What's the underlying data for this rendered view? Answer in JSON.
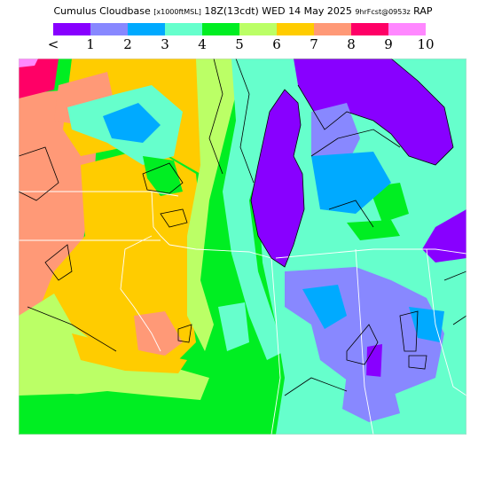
{
  "header": {
    "product": "Cumulus Cloudbase",
    "units": "[x1000ftMSL]",
    "valid": "18Z(13cdt) WED 14 May 2025",
    "fcst": "9hrFcst@0953z",
    "model": "RAP"
  },
  "legend": {
    "labels": [
      "<",
      "1",
      "2",
      "3",
      "4",
      "5",
      "6",
      "7",
      "8",
      "9",
      "10"
    ],
    "colors": [
      "#8800ff",
      "#8888ff",
      "#00aaff",
      "#66ffcc",
      "#00ee22",
      "#bbff66",
      "#ffcc00",
      "#ff9977",
      "#ff0066",
      "#ff88ff"
    ]
  }
}
